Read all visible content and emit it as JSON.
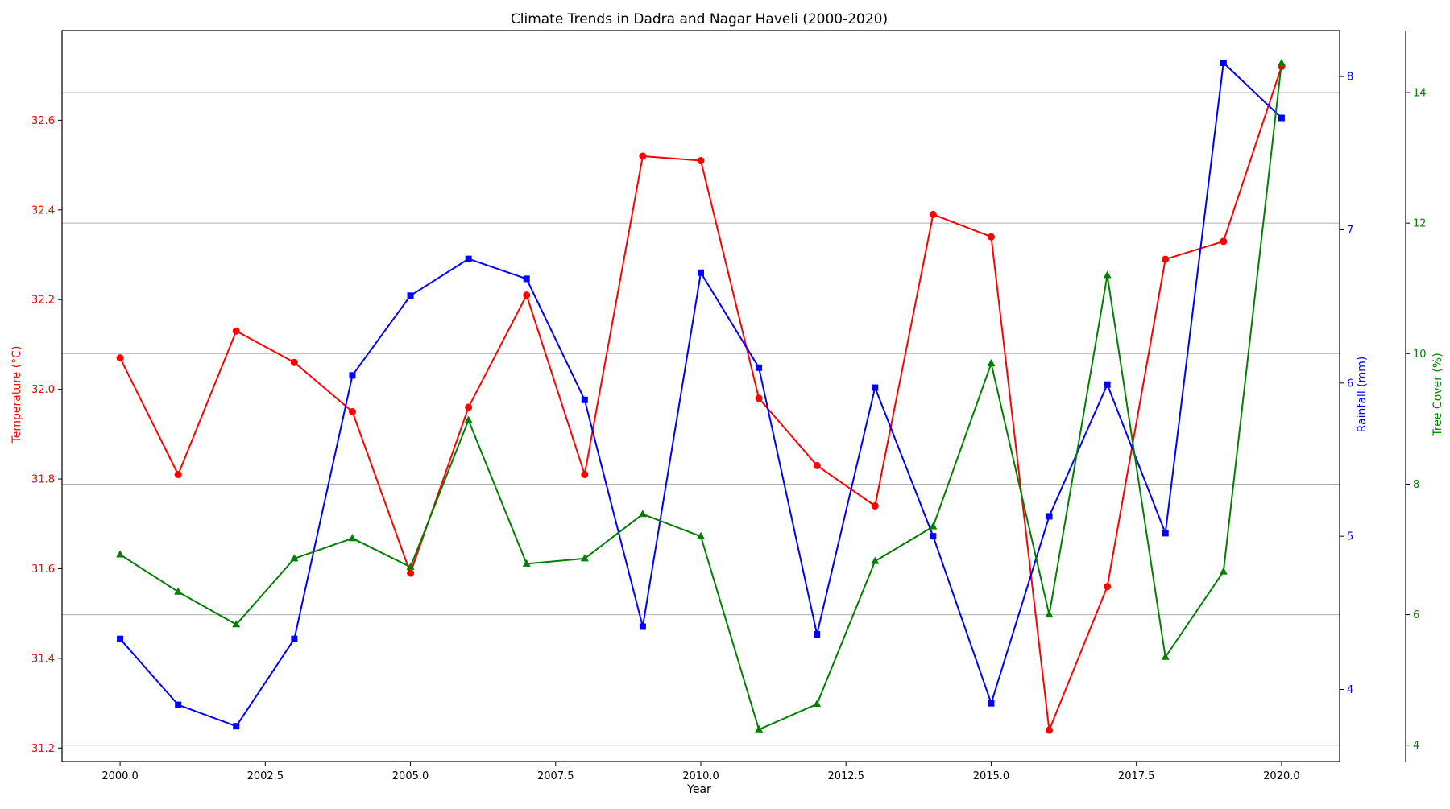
{
  "chart_data": {
    "type": "line",
    "title": "Climate Trends in Dadra and Nagar Haveli (2000-2020)",
    "xlabel": "Year",
    "x": [
      2000,
      2001,
      2002,
      2003,
      2004,
      2005,
      2006,
      2007,
      2008,
      2009,
      2010,
      2011,
      2012,
      2013,
      2014,
      2015,
      2016,
      2017,
      2018,
      2019,
      2020
    ],
    "x_ticks": [
      "2000.0",
      "2002.5",
      "2005.0",
      "2007.5",
      "2010.0",
      "2012.5",
      "2015.0",
      "2017.5",
      "2020.0"
    ],
    "xlim": [
      1999.0,
      2021.0
    ],
    "grid": "horizontal (tree cover axis)",
    "axes": [
      {
        "label": "Temperature (°C)",
        "side": "left",
        "color": "#ff0000",
        "ylim": [
          31.17,
          32.8
        ],
        "ticks": [
          "31.2",
          "31.4",
          "31.6",
          "31.8",
          "32.0",
          "32.2",
          "32.4",
          "32.6"
        ]
      },
      {
        "label": "Rainfall (mm)",
        "side": "right",
        "color": "#0000ff",
        "ylim": [
          3.53,
          8.3
        ],
        "ticks": [
          "4",
          "5",
          "6",
          "7",
          "8"
        ]
      },
      {
        "label": "Tree Cover (%)",
        "side": "right-outer",
        "color": "#008000",
        "ylim": [
          3.75,
          14.95
        ],
        "ticks": [
          "4",
          "6",
          "8",
          "10",
          "12",
          "14"
        ]
      }
    ],
    "series": [
      {
        "axis": 0,
        "color": "#ff0000",
        "marker": "circle",
        "values": [
          32.07,
          31.81,
          32.13,
          32.06,
          31.95,
          31.59,
          31.96,
          32.21,
          31.81,
          32.52,
          32.51,
          31.98,
          31.83,
          31.74,
          32.39,
          32.34,
          31.24,
          31.56,
          32.29,
          32.33,
          32.72
        ]
      },
      {
        "axis": 1,
        "color": "#0000ff",
        "marker": "square",
        "values": [
          4.33,
          3.9,
          3.76,
          4.33,
          6.05,
          6.57,
          6.81,
          6.68,
          5.89,
          4.41,
          6.72,
          6.1,
          4.36,
          5.97,
          5.0,
          3.91,
          5.13,
          5.99,
          5.02,
          8.09,
          7.73
        ]
      },
      {
        "axis": 2,
        "color": "#008000",
        "marker": "triangle",
        "values": [
          6.92,
          6.35,
          5.85,
          6.86,
          7.17,
          6.73,
          8.98,
          6.78,
          6.86,
          7.54,
          7.2,
          4.24,
          4.63,
          6.82,
          7.35,
          9.85,
          6.0,
          11.2,
          5.35,
          6.66,
          14.45
        ]
      }
    ]
  }
}
